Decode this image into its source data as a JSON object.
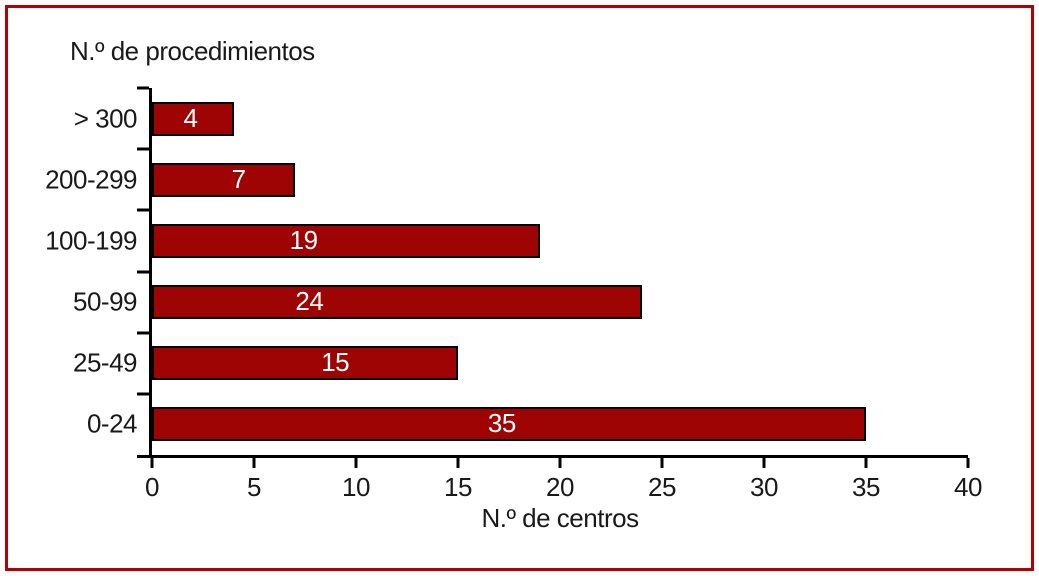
{
  "figure": {
    "frame_color": "#b20005",
    "background_color": "#ffffff"
  },
  "chart_data": {
    "type": "bar",
    "orientation": "horizontal",
    "title": "N.º de procedimientos",
    "xlabel": "N.º de centros",
    "categories": [
      "> 300",
      "200-299",
      "100-199",
      "50-99",
      "25-49",
      "0-24"
    ],
    "values": [
      4,
      7,
      19,
      24,
      15,
      35
    ],
    "xlim": [
      0,
      40
    ],
    "xticks": [
      0,
      5,
      10,
      15,
      20,
      25,
      30,
      35,
      40
    ],
    "grid": false,
    "legend": false,
    "bar_color": "#9e0404",
    "bar_border_color": "#000000",
    "value_label_color": "#ffffff",
    "value_label_pos_pct": [
      47,
      61,
      39,
      32,
      60,
      49
    ]
  }
}
